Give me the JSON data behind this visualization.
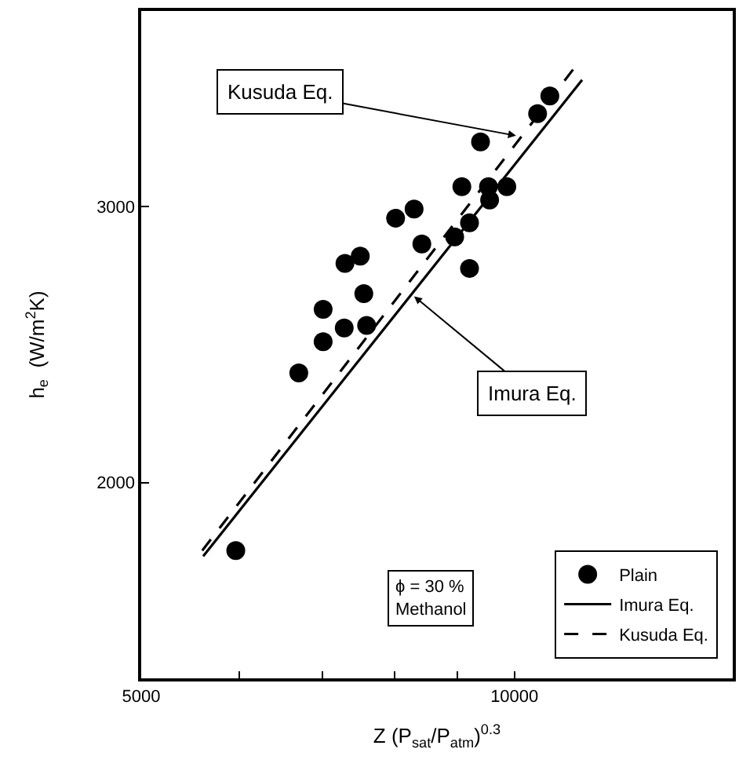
{
  "chart_data": {
    "type": "scatter",
    "xlabel": "Z (P$_{sat}$/P$_{atm}$)$^{0.3}$",
    "ylabel": "h$_{e}$  (W/m$^{2}$K)",
    "log": "xy",
    "xlim": [
      5000,
      15000
    ],
    "ylim": [
      1500,
      4000
    ],
    "xticks": [
      5000,
      {
        "value": 6000,
        "label": null
      },
      {
        "value": 7000,
        "label": null
      },
      {
        "value": 8000,
        "label": null
      },
      {
        "value": 9000,
        "label": null
      },
      10000
    ],
    "yticks": [
      2000,
      3000
    ],
    "grid": false,
    "legend": "bottom right",
    "series": [
      {
        "name": "Plain",
        "marker": "circle",
        "color": "#000000",
        "x": [
          5960,
          6700,
          7010,
          7010,
          7290,
          7300,
          7510,
          7560,
          7600,
          8020,
          8300,
          8420,
          8950,
          9070,
          9200,
          9200,
          9390,
          9530,
          9550,
          9860,
          10440,
          10680
        ],
        "values": [
          1810,
          2350,
          2580,
          2460,
          2510,
          2760,
          2790,
          2640,
          2520,
          2950,
          2990,
          2840,
          2870,
          3090,
          2930,
          2740,
          3300,
          3090,
          3030,
          3090,
          3440,
          3530
        ]
      },
      {
        "name": "Imura Eq.",
        "type": "line",
        "marker": "none",
        "line_style": "solid",
        "color": "#000000",
        "x": [
          5610,
          11340
        ],
        "values": [
          1795,
          3615
        ]
      },
      {
        "name": "Kusuda Eq.",
        "type": "line",
        "marker": "none",
        "line_style": "dashed",
        "color": "#000000",
        "x": [
          5600,
          11150
        ],
        "values": [
          1810,
          3670
        ]
      }
    ],
    "annotations": [
      {
        "text": "Kusuda Eq.",
        "x": 10030,
        "y": 3330
      },
      {
        "text": "Imura Eq.",
        "x": 8300,
        "y": 2630
      },
      "ϕ = 30 %\nMethanol"
    ]
  }
}
